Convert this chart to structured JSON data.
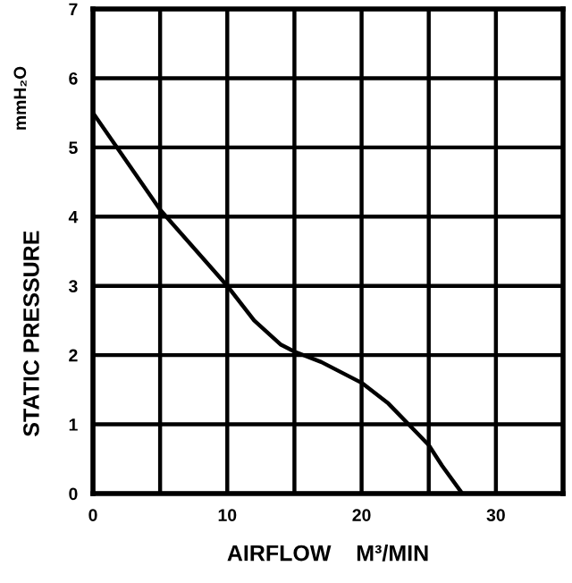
{
  "chart_data": {
    "type": "line",
    "xlabel": "AIRFLOW    M³/MIN",
    "ylabel": "STATIC PRESSURE",
    "annotations": [
      "mmH₂O"
    ],
    "x": [
      0,
      5,
      10,
      12,
      14,
      15,
      17,
      20,
      22,
      24,
      25,
      26,
      27.5
    ],
    "series": [
      {
        "color": "#000000",
        "values": [
          5.5,
          4.1,
          3.0,
          2.5,
          2.15,
          2.05,
          1.9,
          1.6,
          1.3,
          0.9,
          0.7,
          0.4,
          0
        ]
      }
    ],
    "xlim": [
      0,
      35
    ],
    "xticks": [
      0,
      {
        "value": 5,
        "label": null
      },
      10,
      {
        "value": 15,
        "label": null
      },
      20,
      {
        "value": 25,
        "label": null
      },
      30
    ],
    "ylim": [
      0,
      7
    ],
    "yticks": [
      0,
      1,
      2,
      3,
      4,
      5,
      6,
      7
    ],
    "grid": true,
    "legend": false,
    "marker": "none",
    "line_style": "solid"
  }
}
